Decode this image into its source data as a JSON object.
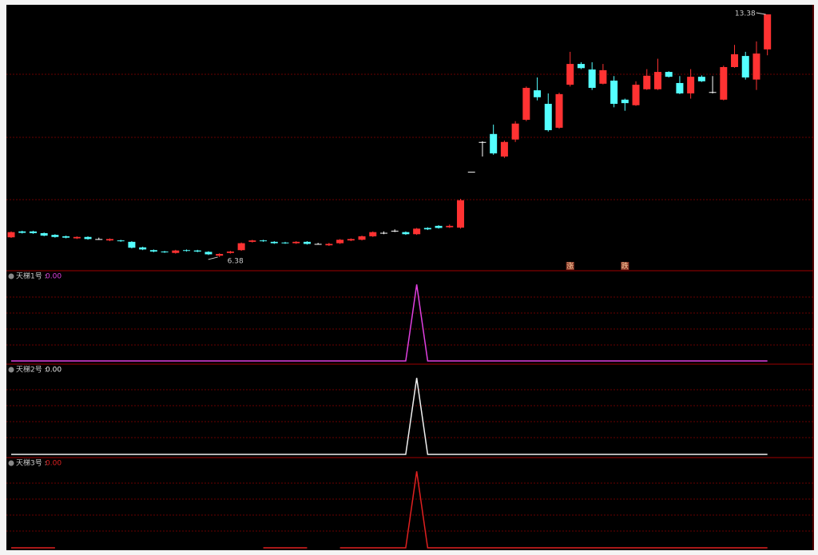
{
  "chart_data": [
    {
      "type": "candlestick",
      "up_color": "#ff3232",
      "down_color": "#54ffff",
      "ylim": [
        6.01,
        13.61
      ],
      "open": [
        6.95,
        7.12,
        7.12,
        7.07,
        7.02,
        6.98,
        6.92,
        6.96,
        6.9,
        6.86,
        6.86,
        6.82,
        6.66,
        6.58,
        6.54,
        6.5,
        6.58,
        6.57,
        6.53,
        6.42,
        6.5,
        6.58,
        6.82,
        6.86,
        6.82,
        6.8,
        6.78,
        6.82,
        6.76,
        6.72,
        6.78,
        6.86,
        6.88,
        6.98,
        7.08,
        7.14,
        7.1,
        7.04,
        7.22,
        7.28,
        7.24,
        7.23,
        8.84,
        9.7,
        9.93,
        9.28,
        9.77,
        10.34,
        11.19,
        10.8,
        10.11,
        11.35,
        11.95,
        11.79,
        11.38,
        11.47,
        10.92,
        10.76,
        11.22,
        11.22,
        11.72,
        11.4,
        11.1,
        11.58,
        11.14,
        10.92,
        11.86,
        12.18,
        11.5,
        12.37
      ],
      "close": [
        7.1,
        7.08,
        7.07,
        7.0,
        6.96,
        6.94,
        6.96,
        6.9,
        6.9,
        6.9,
        6.84,
        6.65,
        6.6,
        6.54,
        6.52,
        6.57,
        6.56,
        6.54,
        6.46,
        6.47,
        6.54,
        6.78,
        6.86,
        6.84,
        6.78,
        6.78,
        6.82,
        6.76,
        6.76,
        6.76,
        6.88,
        6.9,
        6.98,
        7.1,
        7.08,
        7.14,
        7.04,
        7.2,
        7.18,
        7.22,
        7.28,
        8.02,
        8.84,
        9.7,
        9.37,
        9.7,
        10.23,
        11.26,
        10.99,
        10.04,
        11.08,
        11.95,
        11.83,
        11.26,
        11.77,
        10.8,
        10.82,
        11.35,
        11.61,
        11.72,
        11.58,
        11.1,
        11.58,
        11.45,
        11.14,
        11.86,
        12.23,
        11.56,
        12.25,
        13.38
      ],
      "high": [
        7.12,
        7.14,
        7.14,
        7.09,
        7.04,
        7.0,
        6.98,
        6.98,
        6.94,
        6.92,
        6.88,
        6.84,
        6.68,
        6.6,
        6.56,
        6.59,
        6.6,
        6.59,
        6.55,
        6.49,
        6.56,
        6.8,
        6.88,
        6.88,
        6.84,
        6.82,
        6.84,
        6.84,
        6.79,
        6.79,
        6.9,
        6.92,
        7.0,
        7.12,
        7.12,
        7.18,
        7.12,
        7.22,
        7.24,
        7.3,
        7.32,
        8.06,
        8.84,
        9.72,
        10.2,
        9.74,
        10.3,
        11.3,
        11.56,
        11.1,
        11.12,
        12.3,
        12.0,
        12.0,
        11.95,
        11.6,
        10.95,
        11.45,
        11.8,
        12.1,
        11.74,
        11.6,
        11.8,
        11.62,
        11.6,
        11.9,
        12.5,
        12.3,
        12.6,
        13.38
      ],
      "low": [
        6.93,
        7.06,
        7.05,
        6.98,
        6.94,
        6.92,
        6.9,
        6.88,
        6.88,
        6.84,
        6.82,
        6.63,
        6.58,
        6.52,
        6.5,
        6.48,
        6.54,
        6.52,
        6.44,
        6.38,
        6.48,
        6.56,
        6.8,
        6.82,
        6.76,
        6.76,
        6.76,
        6.74,
        6.74,
        6.7,
        6.76,
        6.84,
        6.86,
        6.96,
        7.04,
        7.1,
        7.02,
        7.02,
        7.16,
        7.2,
        7.22,
        7.2,
        8.84,
        9.28,
        9.33,
        9.24,
        9.7,
        10.3,
        10.9,
        10.0,
        10.08,
        11.3,
        11.8,
        11.2,
        11.36,
        10.7,
        10.6,
        10.74,
        11.2,
        11.2,
        11.56,
        11.08,
        10.95,
        11.43,
        11.1,
        10.9,
        11.84,
        11.5,
        11.2,
        12.2
      ],
      "annotations": [
        {
          "text": "13.38",
          "index": 69,
          "price": 13.38
        },
        {
          "text": "6.38",
          "index": 19,
          "price": 6.38
        }
      ],
      "signals": [
        {
          "text": "涨",
          "index": 51
        },
        {
          "text": "跌",
          "index": 56
        }
      ]
    },
    {
      "type": "line",
      "title": "天梯1号 :",
      "readout": "0.00",
      "color": "#e040e0",
      "ylim": [
        0,
        1.17
      ],
      "values": [
        0,
        0,
        0,
        0,
        0,
        0,
        0,
        0,
        0,
        0,
        0,
        0,
        0,
        0,
        0,
        0,
        0,
        0,
        0,
        0,
        0,
        0,
        0,
        0,
        0,
        0,
        0,
        0,
        0,
        0,
        0,
        0,
        0,
        0,
        0,
        0,
        0,
        1,
        0,
        0,
        0,
        0,
        0,
        0,
        0,
        0,
        0,
        0,
        0,
        0,
        0,
        0,
        0,
        0,
        0,
        0,
        0,
        0,
        0,
        0,
        0,
        0,
        0,
        0,
        0,
        0,
        0,
        0,
        0,
        0
      ]
    },
    {
      "type": "line",
      "title": "天梯2号 :",
      "readout": "0.00",
      "color": "#f0f0f0",
      "ylim": [
        0,
        1.17
      ],
      "values": [
        0,
        0,
        0,
        0,
        0,
        0,
        0,
        0,
        0,
        0,
        0,
        0,
        0,
        0,
        0,
        0,
        0,
        0,
        0,
        0,
        0,
        0,
        0,
        0,
        0,
        0,
        0,
        0,
        0,
        0,
        0,
        0,
        0,
        0,
        0,
        0,
        0,
        1,
        0,
        0,
        0,
        0,
        0,
        0,
        0,
        0,
        0,
        0,
        0,
        0,
        0,
        0,
        0,
        0,
        0,
        0,
        0,
        0,
        0,
        0,
        0,
        0,
        0,
        0,
        0,
        0,
        0,
        0,
        0,
        0
      ]
    },
    {
      "type": "line",
      "title": "天梯3号 :",
      "readout": "0.00",
      "color": "#e02020",
      "ylim": [
        0,
        1.17
      ],
      "values": [
        0,
        0,
        0,
        0,
        0,
        null,
        null,
        null,
        null,
        null,
        null,
        null,
        null,
        null,
        null,
        null,
        null,
        null,
        null,
        null,
        null,
        null,
        null,
        0,
        0,
        0,
        0,
        0,
        null,
        null,
        0,
        0,
        0,
        0,
        0,
        0,
        0,
        1,
        0,
        0,
        0,
        0,
        0,
        0,
        0,
        0,
        0,
        0,
        0,
        0,
        0,
        0,
        0,
        0,
        0,
        0,
        0,
        0,
        0,
        0,
        0,
        0,
        0,
        0,
        0,
        0,
        0,
        0,
        0,
        0
      ]
    }
  ]
}
